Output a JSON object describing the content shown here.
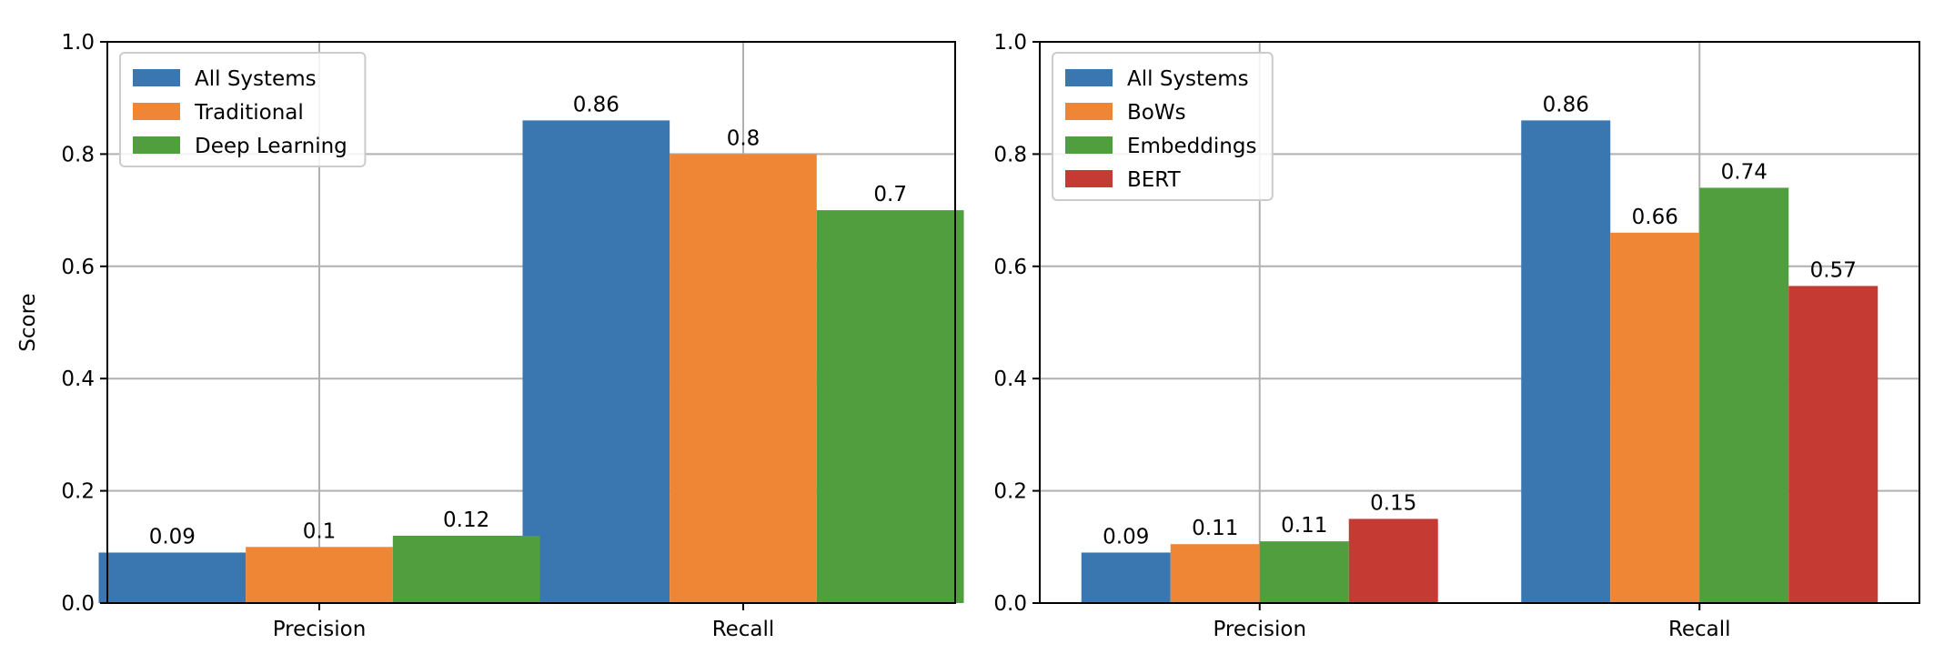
{
  "chart_data": [
    {
      "type": "bar",
      "categories": [
        "Precision",
        "Recall"
      ],
      "series": [
        {
          "name": "All Systems",
          "color": "#3a76b0",
          "values": [
            0.09,
            0.86
          ],
          "labels": [
            "0.09",
            "0.86"
          ]
        },
        {
          "name": "Traditional",
          "color": "#ef8636",
          "values": [
            0.1,
            0.8
          ],
          "labels": [
            "0.1",
            "0.8"
          ]
        },
        {
          "name": "Deep Learning",
          "color": "#519e3e",
          "values": [
            0.12,
            0.7
          ],
          "labels": [
            "0.12",
            "0.7"
          ]
        }
      ],
      "ylabel": "Score",
      "ylim": [
        0,
        1.0
      ],
      "yticks": [
        "0.0",
        "0.2",
        "0.4",
        "0.6",
        "0.8",
        "1.0"
      ],
      "grid": true,
      "legend": "upper-left"
    },
    {
      "type": "bar",
      "categories": [
        "Precision",
        "Recall"
      ],
      "series": [
        {
          "name": "All Systems",
          "color": "#3a76b0",
          "values": [
            0.09,
            0.86
          ],
          "labels": [
            "0.09",
            "0.86"
          ]
        },
        {
          "name": "BoWs",
          "color": "#ef8636",
          "values": [
            0.105,
            0.66
          ],
          "labels": [
            "0.11",
            "0.66"
          ]
        },
        {
          "name": "Embeddings",
          "color": "#519e3e",
          "values": [
            0.11,
            0.74
          ],
          "labels": [
            "0.11",
            "0.74"
          ]
        },
        {
          "name": "BERT",
          "color": "#c53a32",
          "values": [
            0.15,
            0.565
          ],
          "labels": [
            "0.15",
            "0.57"
          ]
        }
      ],
      "ylabel": "",
      "ylim": [
        0,
        1.0
      ],
      "yticks": [
        "0.0",
        "0.2",
        "0.4",
        "0.6",
        "0.8",
        "1.0"
      ],
      "grid": true,
      "legend": "upper-left"
    }
  ]
}
